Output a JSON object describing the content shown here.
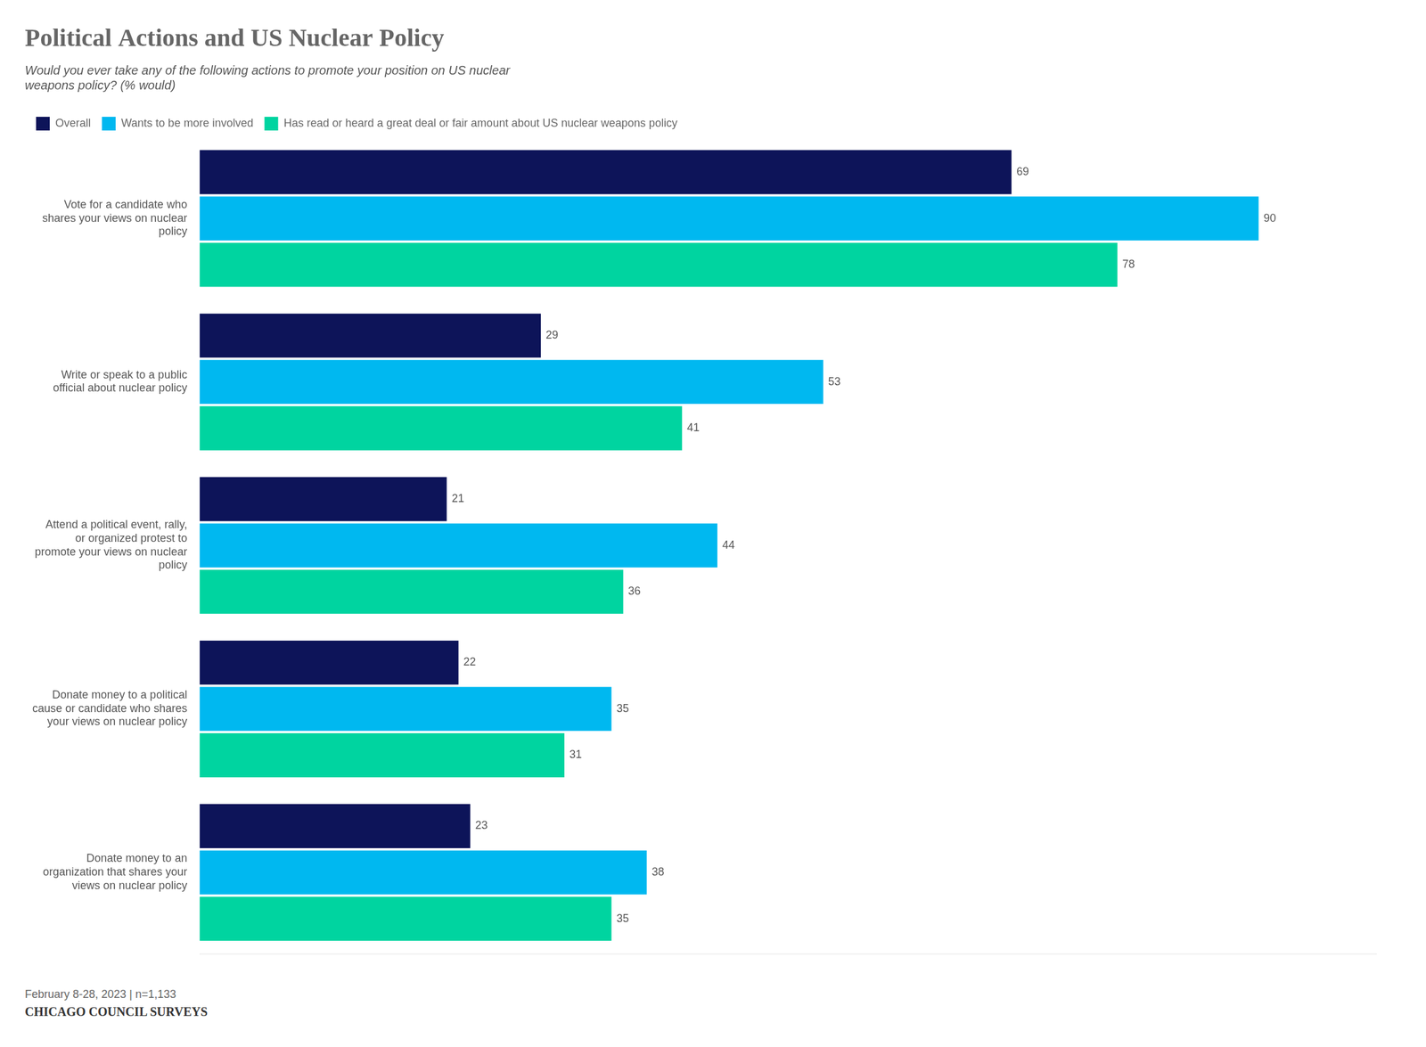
{
  "chart_data": {
    "type": "bar",
    "orientation": "horizontal",
    "title": "Political Actions and US Nuclear Policy",
    "subtitle": "Would you ever take any of the following actions to promote your position on US nuclear\nweapons policy? (% would)",
    "categories": [
      "Vote for a candidate who\nshares your views on nuclear\npolicy",
      "Write or speak to a public\nofficial about nuclear policy",
      "Attend a political event, rally,\nor organized protest to\npromote your views on nuclear\npolicy",
      "Donate money to a political\ncause or candidate who shares\nyour views on nuclear policy",
      "Donate money to an\norganization that shares your\nviews on nuclear policy"
    ],
    "series": [
      {
        "name": "Overall",
        "color": "#0d1459",
        "values": [
          69,
          29,
          21,
          22,
          23
        ]
      },
      {
        "name": "Wants to be more involved",
        "color": "#00b8f0",
        "values": [
          90,
          53,
          44,
          35,
          38
        ]
      },
      {
        "name": "Has read or heard a great deal or fair amount about US nuclear weapons policy",
        "color": "#00d4a0",
        "values": [
          78,
          41,
          36,
          31,
          35
        ]
      }
    ],
    "xlim": [
      0,
      100
    ],
    "tick_labels": "y",
    "grid": false,
    "legend": "upper left",
    "data_labels": true,
    "footnote": "February 8-28, 2023 | n=1,133",
    "source": "CHICAGO COUNCIL SURVEYS"
  }
}
